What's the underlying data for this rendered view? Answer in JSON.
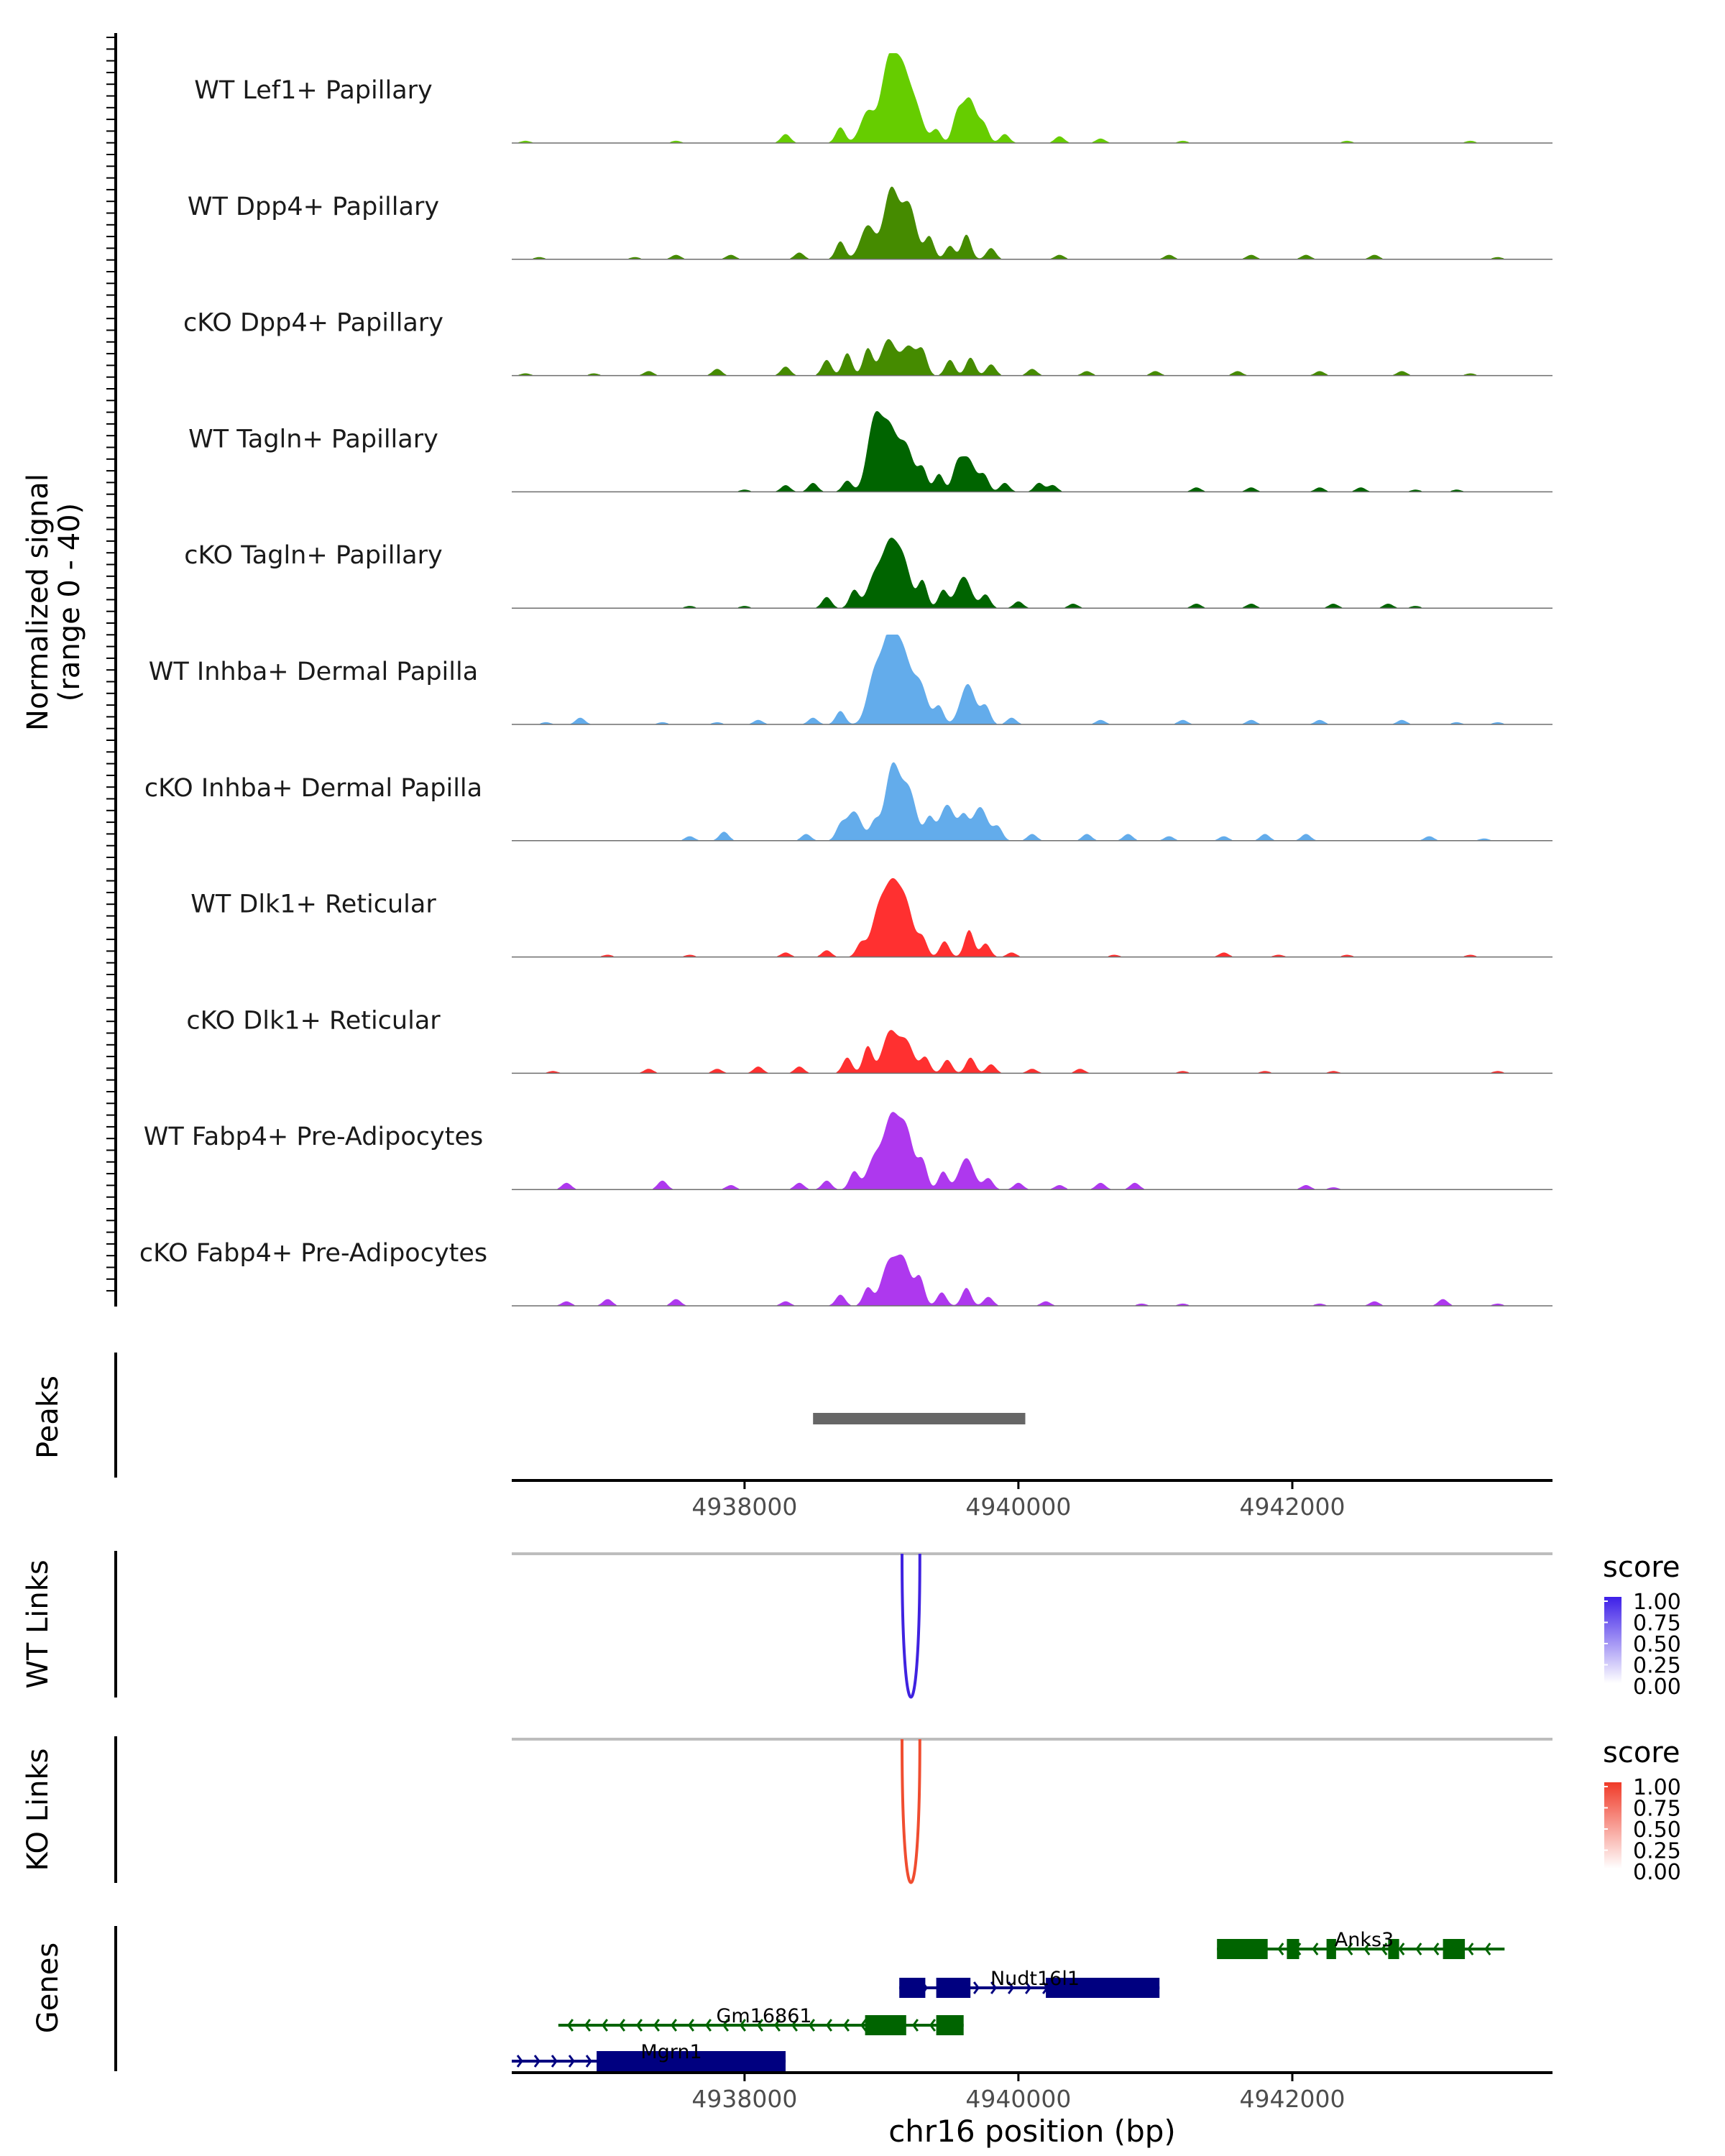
{
  "chart_data": {
    "type": "area",
    "region": "chr16",
    "x_range": [
      4936300,
      4943900
    ],
    "y_axis_label": [
      "Normalized signal",
      "(range 0 - 40)"
    ],
    "y_range": [
      0,
      40
    ],
    "x_axis_label": "chr16 position (bp)",
    "x_ticks": [
      4938000,
      4940000,
      4942000
    ],
    "x_tick_labels": [
      "4938000",
      "4940000",
      "4942000"
    ],
    "tracks": [
      {
        "name": "WT Lef1+ Papillary",
        "color": "#66CD00",
        "peaks": [
          [
            4936400,
            1
          ],
          [
            4937500,
            1
          ],
          [
            4938300,
            4
          ],
          [
            4938700,
            7
          ],
          [
            4938900,
            14
          ],
          [
            4939050,
            34
          ],
          [
            4939150,
            29
          ],
          [
            4939250,
            15
          ],
          [
            4939400,
            6
          ],
          [
            4939550,
            10
          ],
          [
            4939640,
            20
          ],
          [
            4939750,
            7
          ],
          [
            4939900,
            4
          ],
          [
            4940300,
            3
          ],
          [
            4940600,
            2
          ],
          [
            4941200,
            1
          ],
          [
            4942400,
            1
          ],
          [
            4943300,
            1
          ]
        ]
      },
      {
        "name": "WT Dpp4+ Papillary",
        "color": "#458B00",
        "peaks": [
          [
            4936500,
            1
          ],
          [
            4937200,
            1
          ],
          [
            4937500,
            2
          ],
          [
            4937900,
            2
          ],
          [
            4938400,
            3
          ],
          [
            4938700,
            8
          ],
          [
            4938900,
            15
          ],
          [
            4939070,
            31
          ],
          [
            4939200,
            24
          ],
          [
            4939350,
            10
          ],
          [
            4939500,
            6
          ],
          [
            4939620,
            11
          ],
          [
            4939800,
            5
          ],
          [
            4940300,
            2
          ],
          [
            4941100,
            2
          ],
          [
            4941700,
            2
          ],
          [
            4942100,
            2
          ],
          [
            4942600,
            2
          ],
          [
            4943500,
            1
          ]
        ]
      },
      {
        "name": "cKO Dpp4+ Papillary",
        "color": "#458B00",
        "peaks": [
          [
            4936400,
            1
          ],
          [
            4936900,
            1
          ],
          [
            4937300,
            2
          ],
          [
            4937800,
            3
          ],
          [
            4938300,
            4
          ],
          [
            4938600,
            7
          ],
          [
            4938750,
            10
          ],
          [
            4938900,
            12
          ],
          [
            4939050,
            16
          ],
          [
            4939200,
            13
          ],
          [
            4939300,
            10
          ],
          [
            4939500,
            7
          ],
          [
            4939650,
            8
          ],
          [
            4939800,
            5
          ],
          [
            4940100,
            3
          ],
          [
            4940500,
            2
          ],
          [
            4941000,
            2
          ],
          [
            4941600,
            2
          ],
          [
            4942200,
            2
          ],
          [
            4942800,
            2
          ],
          [
            4943300,
            1
          ]
        ]
      },
      {
        "name": "WT Tagln+ Papillary",
        "color": "#006400",
        "peaks": [
          [
            4938000,
            1
          ],
          [
            4938300,
            3
          ],
          [
            4938500,
            4
          ],
          [
            4938750,
            5
          ],
          [
            4938950,
            32
          ],
          [
            4939060,
            26
          ],
          [
            4939180,
            20
          ],
          [
            4939300,
            10
          ],
          [
            4939420,
            8
          ],
          [
            4939550,
            9
          ],
          [
            4939630,
            15
          ],
          [
            4939750,
            7
          ],
          [
            4939900,
            4
          ],
          [
            4940150,
            4
          ],
          [
            4940250,
            3
          ],
          [
            4941300,
            2
          ],
          [
            4941700,
            2
          ],
          [
            4942200,
            2
          ],
          [
            4942500,
            2
          ],
          [
            4942900,
            1
          ],
          [
            4943200,
            1
          ]
        ]
      },
      {
        "name": "cKO Tagln+ Papillary",
        "color": "#006400",
        "peaks": [
          [
            4937600,
            1
          ],
          [
            4938000,
            1
          ],
          [
            4938600,
            5
          ],
          [
            4938800,
            8
          ],
          [
            4938950,
            14
          ],
          [
            4939060,
            26
          ],
          [
            4939160,
            20
          ],
          [
            4939300,
            12
          ],
          [
            4939450,
            8
          ],
          [
            4939600,
            14
          ],
          [
            4939760,
            6
          ],
          [
            4940000,
            3
          ],
          [
            4940400,
            2
          ],
          [
            4941300,
            2
          ],
          [
            4941700,
            2
          ],
          [
            4942300,
            2
          ],
          [
            4942700,
            2
          ],
          [
            4942900,
            1
          ]
        ]
      },
      {
        "name": "WT Inhba+ Dermal Papilla",
        "color": "#63ACEB",
        "peaks": [
          [
            4936550,
            1
          ],
          [
            4936800,
            3
          ],
          [
            4937400,
            1
          ],
          [
            4937800,
            1
          ],
          [
            4938100,
            2
          ],
          [
            4938500,
            3
          ],
          [
            4938700,
            6
          ],
          [
            4938950,
            22
          ],
          [
            4939060,
            36
          ],
          [
            4939160,
            28
          ],
          [
            4939280,
            18
          ],
          [
            4939420,
            8
          ],
          [
            4939630,
            18
          ],
          [
            4939760,
            8
          ],
          [
            4939950,
            3
          ],
          [
            4940600,
            2
          ],
          [
            4941200,
            2
          ],
          [
            4941700,
            2
          ],
          [
            4942200,
            2
          ],
          [
            4942800,
            2
          ],
          [
            4943200,
            1
          ],
          [
            4943500,
            1
          ]
        ]
      },
      {
        "name": "cKO Inhba+ Dermal Papilla",
        "color": "#63ACEB",
        "peaks": [
          [
            4937600,
            2
          ],
          [
            4937850,
            4
          ],
          [
            4938450,
            3
          ],
          [
            4938700,
            6
          ],
          [
            4938800,
            13
          ],
          [
            4938950,
            8
          ],
          [
            4939080,
            33
          ],
          [
            4939200,
            22
          ],
          [
            4939350,
            10
          ],
          [
            4939480,
            16
          ],
          [
            4939600,
            10
          ],
          [
            4939720,
            15
          ],
          [
            4939850,
            6
          ],
          [
            4940100,
            3
          ],
          [
            4940500,
            3
          ],
          [
            4940800,
            3
          ],
          [
            4941100,
            2
          ],
          [
            4941500,
            2
          ],
          [
            4941800,
            3
          ],
          [
            4942100,
            3
          ],
          [
            4943000,
            2
          ],
          [
            4943400,
            1
          ]
        ]
      },
      {
        "name": "WT Dlk1+ Reticular",
        "color": "#FF3030",
        "peaks": [
          [
            4937000,
            1
          ],
          [
            4937600,
            1
          ],
          [
            4938300,
            2
          ],
          [
            4938600,
            3
          ],
          [
            4938850,
            6
          ],
          [
            4938980,
            20
          ],
          [
            4939080,
            28
          ],
          [
            4939180,
            22
          ],
          [
            4939300,
            8
          ],
          [
            4939460,
            7
          ],
          [
            4939640,
            12
          ],
          [
            4939760,
            6
          ],
          [
            4939950,
            2
          ],
          [
            4940700,
            1
          ],
          [
            4941500,
            2
          ],
          [
            4941900,
            1
          ],
          [
            4942400,
            1
          ],
          [
            4943300,
            1
          ]
        ]
      },
      {
        "name": "cKO Dlk1+ Reticular",
        "color": "#FF3030",
        "peaks": [
          [
            4936600,
            1
          ],
          [
            4937300,
            2
          ],
          [
            4937800,
            2
          ],
          [
            4938100,
            3
          ],
          [
            4938400,
            3
          ],
          [
            4938750,
            7
          ],
          [
            4938900,
            12
          ],
          [
            4939060,
            18
          ],
          [
            4939180,
            14
          ],
          [
            4939320,
            7
          ],
          [
            4939480,
            6
          ],
          [
            4939650,
            7
          ],
          [
            4939800,
            4
          ],
          [
            4940100,
            2
          ],
          [
            4940450,
            2
          ],
          [
            4941200,
            1
          ],
          [
            4941800,
            1
          ],
          [
            4942300,
            1
          ],
          [
            4943500,
            1
          ]
        ]
      },
      {
        "name": "WT Fabp4+ Pre-Adipocytes",
        "color": "#AE38EE",
        "peaks": [
          [
            4936700,
            3
          ],
          [
            4937400,
            4
          ],
          [
            4937900,
            2
          ],
          [
            4938400,
            3
          ],
          [
            4938600,
            4
          ],
          [
            4938800,
            8
          ],
          [
            4938950,
            14
          ],
          [
            4939070,
            30
          ],
          [
            4939180,
            26
          ],
          [
            4939300,
            12
          ],
          [
            4939450,
            8
          ],
          [
            4939620,
            14
          ],
          [
            4939780,
            5
          ],
          [
            4940000,
            3
          ],
          [
            4940300,
            2
          ],
          [
            4940600,
            3
          ],
          [
            4940850,
            3
          ],
          [
            4942100,
            2
          ],
          [
            4942300,
            1
          ]
        ]
      },
      {
        "name": "cKO Fabp4+ Pre-Adipocytes",
        "color": "#AE38EE",
        "peaks": [
          [
            4936700,
            2
          ],
          [
            4937000,
            3
          ],
          [
            4937500,
            3
          ],
          [
            4938300,
            2
          ],
          [
            4938700,
            5
          ],
          [
            4938900,
            8
          ],
          [
            4939050,
            18
          ],
          [
            4939160,
            20
          ],
          [
            4939280,
            12
          ],
          [
            4939440,
            6
          ],
          [
            4939620,
            8
          ],
          [
            4939780,
            4
          ],
          [
            4940200,
            2
          ],
          [
            4940900,
            1
          ],
          [
            4941200,
            1
          ],
          [
            4942200,
            1
          ],
          [
            4942600,
            2
          ],
          [
            4943100,
            3
          ],
          [
            4943500,
            1
          ]
        ]
      }
    ],
    "peaks_track": {
      "label": "Peaks",
      "intervals": [
        [
          4938500,
          4940050
        ]
      ]
    },
    "links": [
      {
        "label": "WT Links",
        "start": 4939150,
        "end": 4939280,
        "score": 1.0,
        "color": "#3F22E0",
        "legend_title": "score",
        "legend_ticks": [
          "1.00",
          "0.75",
          "0.50",
          "0.25",
          "0.00"
        ],
        "legend_color": "#3D1FE8"
      },
      {
        "label": "KO Links",
        "start": 4939150,
        "end": 4939280,
        "score": 1.0,
        "color": "#F04D30",
        "legend_title": "score",
        "legend_ticks": [
          "1.00",
          "0.75",
          "0.50",
          "0.25",
          "0.00"
        ],
        "legend_color": "#F03A28"
      }
    ],
    "genes_label": "Genes",
    "genes": [
      {
        "name": "Anks3",
        "strand": "-",
        "row": 0,
        "color": "#006400",
        "start": 4941450,
        "end": 4943550,
        "exons": [
          [
            4941450,
            4941820
          ],
          [
            4941960,
            4942050
          ],
          [
            4942250,
            4942320
          ],
          [
            4942700,
            4942780
          ],
          [
            4943100,
            4943260
          ]
        ]
      },
      {
        "name": "Nudt16l1",
        "strand": "+",
        "row": 1,
        "color": "#000080",
        "start": 4939130,
        "end": 4941030,
        "exons": [
          [
            4939130,
            4939320
          ],
          [
            4939400,
            4939650
          ],
          [
            4940200,
            4941030
          ]
        ]
      },
      {
        "name": "Gm16861",
        "strand": "-",
        "row": 2,
        "color": "#006400",
        "start": 4936640,
        "end": 4939600,
        "exons": [
          [
            4938880,
            4939180
          ],
          [
            4939400,
            4939600
          ]
        ]
      },
      {
        "name": "Mgrn1",
        "strand": "+",
        "row": 3,
        "color": "#000080",
        "start": 4936300,
        "end": 4938300,
        "exons": [
          [
            4936920,
            4938300
          ]
        ]
      }
    ]
  }
}
